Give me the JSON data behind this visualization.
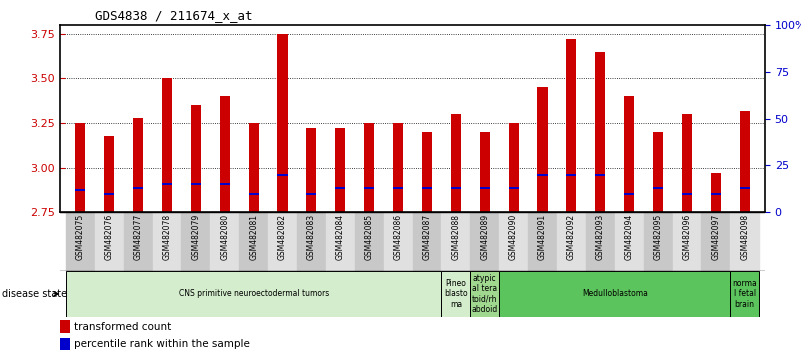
{
  "title": "GDS4838 / 211674_x_at",
  "samples": [
    "GSM482075",
    "GSM482076",
    "GSM482077",
    "GSM482078",
    "GSM482079",
    "GSM482080",
    "GSM482081",
    "GSM482082",
    "GSM482083",
    "GSM482084",
    "GSM482085",
    "GSM482086",
    "GSM482087",
    "GSM482088",
    "GSM482089",
    "GSM482090",
    "GSM482091",
    "GSM482092",
    "GSM482093",
    "GSM482094",
    "GSM482095",
    "GSM482096",
    "GSM482097",
    "GSM482098"
  ],
  "transformed_count": [
    3.25,
    3.18,
    3.28,
    3.5,
    3.35,
    3.4,
    3.25,
    3.75,
    3.22,
    3.22,
    3.25,
    3.25,
    3.2,
    3.3,
    3.2,
    3.25,
    3.45,
    3.72,
    3.65,
    3.4,
    3.2,
    3.3,
    2.97,
    3.32
  ],
  "percentile_rank": [
    12,
    10,
    13,
    15,
    15,
    15,
    10,
    20,
    10,
    13,
    13,
    13,
    13,
    13,
    13,
    13,
    20,
    20,
    20,
    10,
    13,
    10,
    10,
    13
  ],
  "bar_bottom": 2.75,
  "ylim_left": [
    2.75,
    3.8
  ],
  "ylim_right": [
    0,
    100
  ],
  "yticks_left": [
    2.75,
    3.0,
    3.25,
    3.5,
    3.75
  ],
  "yticks_right": [
    0,
    25,
    50,
    75,
    100
  ],
  "ytick_labels_right": [
    "0",
    "25",
    "50",
    "75",
    "100%"
  ],
  "bar_color": "#cc0000",
  "percentile_color": "#0000cc",
  "background_color": "#ffffff",
  "disease_groups": [
    {
      "label": "CNS primitive neuroectodermal tumors",
      "start": 0,
      "end": 13,
      "color": "#d4edcc"
    },
    {
      "label": "Pineo\nblasto\nma",
      "start": 13,
      "end": 14,
      "color": "#d4edcc"
    },
    {
      "label": "atypic\nal tera\ntoid/rh\nabdoid",
      "start": 14,
      "end": 15,
      "color": "#a0d890"
    },
    {
      "label": "Medulloblastoma",
      "start": 15,
      "end": 23,
      "color": "#5cc45c"
    },
    {
      "label": "norma\nl fetal\nbrain",
      "start": 23,
      "end": 24,
      "color": "#5cc45c"
    }
  ],
  "legend_items": [
    {
      "label": "transformed count",
      "color": "#cc0000"
    },
    {
      "label": "percentile rank within the sample",
      "color": "#0000cc"
    }
  ],
  "left_tick_color": "#cc0000",
  "right_tick_color": "#0000cc"
}
